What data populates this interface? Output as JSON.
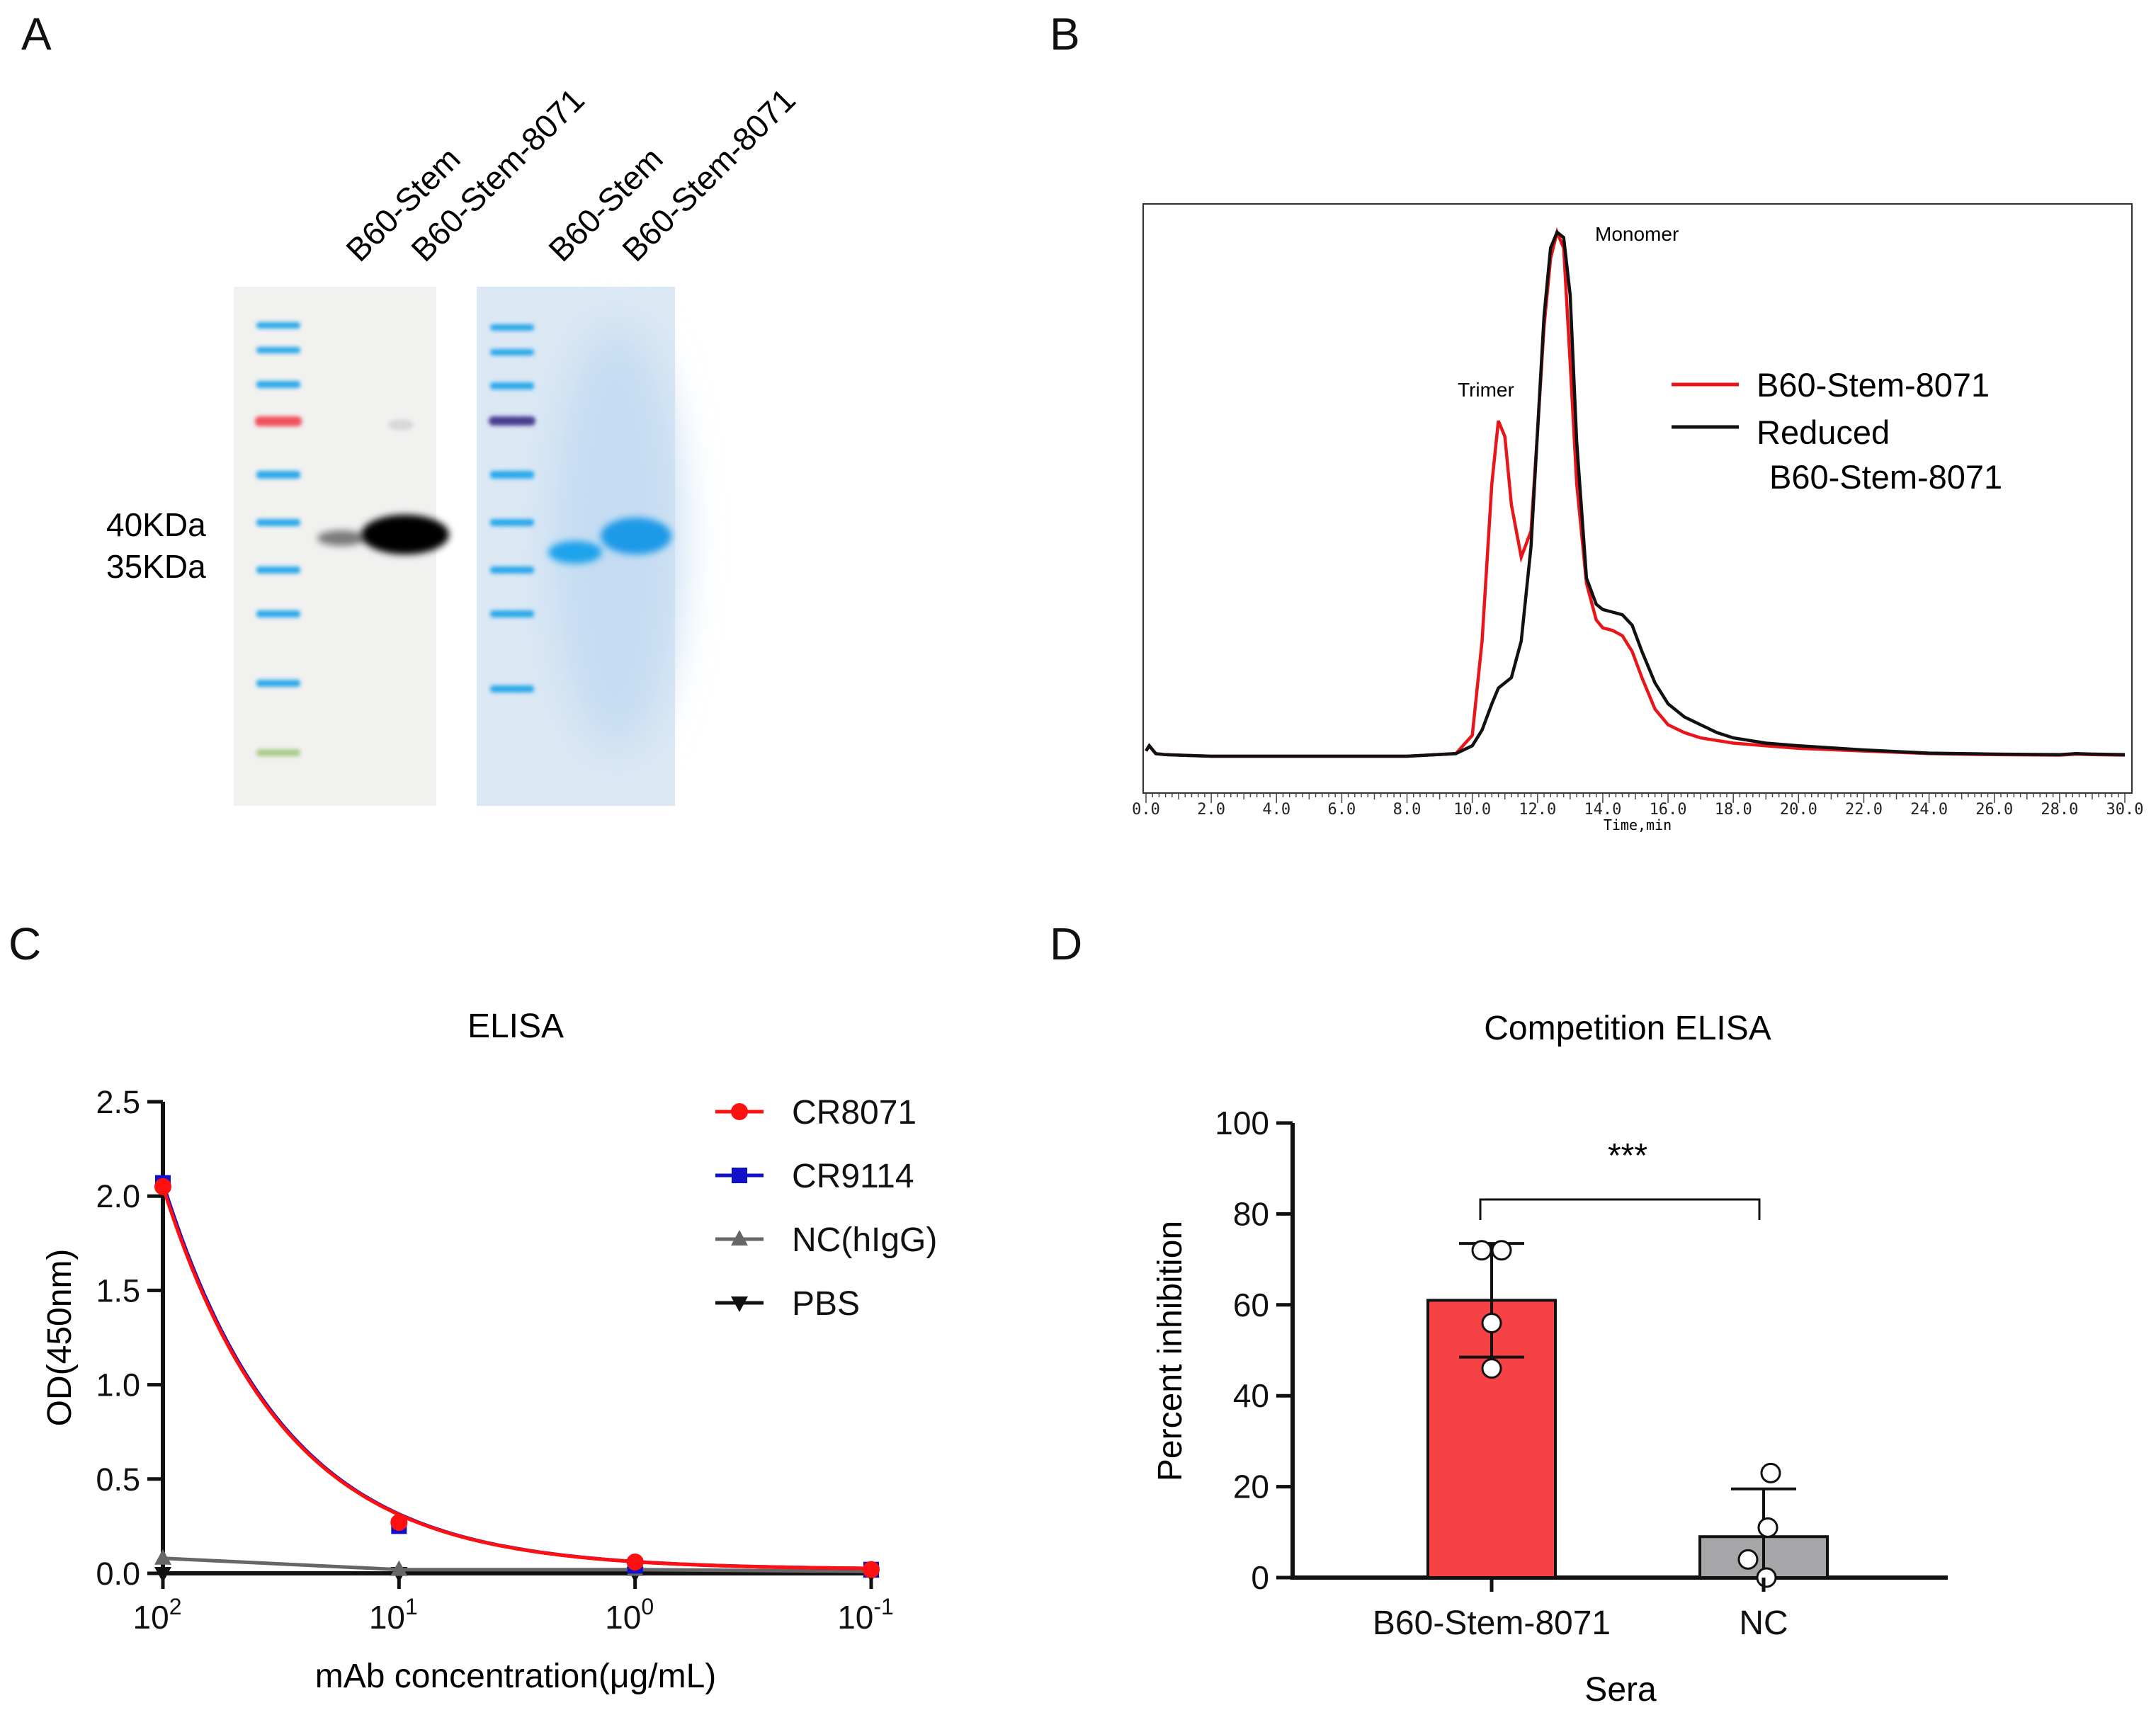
{
  "panels": {
    "a": "A",
    "b": "B",
    "c": "C",
    "d": "D"
  },
  "chart_data": [
    {
      "panel": "A",
      "type": "other",
      "description_kind": "gel",
      "lane_labels": [
        "B60-Stem",
        "B60-Stem-8071",
        "B60-Stem",
        "B60-Stem-8071"
      ],
      "marker_labels": [
        "40KDa",
        "35KDa"
      ],
      "colors": {
        "western_band": "#000000",
        "coomassie_band": "#1fa3ec",
        "ladder_blue": "#29a8ea",
        "ladder_red": "#f0505a",
        "ladder_purple": "#4a3d8f",
        "ladder_green": "#a9cc8a"
      }
    },
    {
      "panel": "B",
      "type": "line",
      "xlabel": "Time,min",
      "xlim": [
        0,
        30
      ],
      "xticks": [
        "0.0",
        "2.0",
        "4.0",
        "6.0",
        "8.0",
        "10.0",
        "12.0",
        "14.0",
        "16.0",
        "18.0",
        "20.0",
        "22.0",
        "24.0",
        "26.0",
        "28.0",
        "30.0"
      ],
      "annotations": {
        "trimer": "Trimer",
        "monomer": "Monomer"
      },
      "ylim": [
        0,
        1
      ],
      "legend": {
        "entries": [
          "B60-Stem-8071",
          "Reduced",
          "B60-Stem-8071"
        ]
      },
      "series": [
        {
          "name": "B60-Stem-8071",
          "color": "#e8151b",
          "x": [
            0,
            0.1,
            0.3,
            0.6,
            2,
            4,
            6,
            8,
            9.5,
            10.0,
            10.3,
            10.6,
            10.8,
            11.0,
            11.2,
            11.5,
            11.8,
            12.0,
            12.2,
            12.4,
            12.6,
            12.8,
            13.0,
            13.2,
            13.5,
            13.8,
            14.0,
            14.3,
            14.6,
            14.9,
            15.2,
            15.6,
            16.0,
            16.5,
            17.0,
            17.5,
            18.0,
            19,
            20,
            22,
            24,
            26,
            28,
            28.5,
            29,
            30
          ],
          "y": [
            0.01,
            0.02,
            0.005,
            0.003,
            0.0,
            0.0,
            0.0,
            0.0,
            0.005,
            0.04,
            0.22,
            0.52,
            0.64,
            0.61,
            0.48,
            0.38,
            0.43,
            0.62,
            0.82,
            0.95,
            1.0,
            0.97,
            0.75,
            0.52,
            0.33,
            0.26,
            0.245,
            0.24,
            0.23,
            0.2,
            0.15,
            0.09,
            0.06,
            0.045,
            0.035,
            0.03,
            0.025,
            0.02,
            0.015,
            0.01,
            0.005,
            0.003,
            0.002,
            0.004,
            0.003,
            0.002
          ]
        },
        {
          "name": "Reduced B60-Stem-8071",
          "color": "#111111",
          "x": [
            0,
            0.1,
            0.3,
            0.6,
            2,
            4,
            6,
            8,
            9.5,
            10.0,
            10.3,
            10.6,
            10.8,
            11.0,
            11.2,
            11.5,
            11.8,
            12.0,
            12.2,
            12.4,
            12.6,
            12.8,
            13.0,
            13.2,
            13.5,
            13.8,
            14.0,
            14.3,
            14.6,
            14.9,
            15.2,
            15.6,
            16.0,
            16.5,
            17.0,
            17.5,
            18.0,
            19,
            20,
            22,
            24,
            26,
            28,
            28.5,
            29,
            30
          ],
          "y": [
            0.01,
            0.02,
            0.005,
            0.003,
            0.0,
            0.0,
            0.0,
            0.0,
            0.005,
            0.02,
            0.05,
            0.1,
            0.13,
            0.14,
            0.15,
            0.22,
            0.4,
            0.62,
            0.84,
            0.97,
            1.0,
            0.99,
            0.88,
            0.6,
            0.34,
            0.29,
            0.28,
            0.275,
            0.27,
            0.25,
            0.2,
            0.14,
            0.1,
            0.075,
            0.06,
            0.045,
            0.035,
            0.025,
            0.02,
            0.012,
            0.006,
            0.004,
            0.003,
            0.005,
            0.004,
            0.003
          ]
        }
      ]
    },
    {
      "panel": "C",
      "type": "line",
      "title": "ELISA",
      "xlabel": "mAb concentration(μg/mL)",
      "ylabel": "OD(450nm)",
      "x_scale": "log, reversed",
      "x_ticks": [
        {
          "base": "10",
          "exp": "2",
          "value": 100
        },
        {
          "base": "10",
          "exp": "1",
          "value": 10
        },
        {
          "base": "10",
          "exp": "0",
          "value": 1
        },
        {
          "base": "10",
          "exp": "-1",
          "value": 0.1
        }
      ],
      "ylim": [
        0,
        2.5
      ],
      "yticks": [
        "0.0",
        "0.5",
        "1.0",
        "1.5",
        "2.0",
        "2.5"
      ],
      "x": [
        100,
        10,
        1,
        0.1
      ],
      "series": [
        {
          "name": "CR8071",
          "color": "#ff1010",
          "marker": "circle",
          "values": [
            2.05,
            0.27,
            0.06,
            0.02
          ]
        },
        {
          "name": "CR9114",
          "color": "#1010c8",
          "marker": "square",
          "values": [
            2.07,
            0.25,
            0.04,
            0.02
          ]
        },
        {
          "name": "NC(hIgG)",
          "color": "#666666",
          "marker": "triangle-up",
          "values": [
            0.08,
            0.02,
            0.02,
            0.01
          ]
        },
        {
          "name": "PBS",
          "color": "#111111",
          "marker": "triangle-down",
          "values": [
            0.0,
            0.0,
            0.0,
            0.0
          ]
        }
      ]
    },
    {
      "panel": "D",
      "type": "bar",
      "title": "Competition ELISA",
      "xlabel": "Sera",
      "ylabel": "Percent inhibition",
      "ylim": [
        0,
        100
      ],
      "yticks": [
        "0",
        "20",
        "40",
        "60",
        "80",
        "100"
      ],
      "categories": [
        "B60-Stem-8071",
        "NC"
      ],
      "values": [
        61,
        9
      ],
      "errors": [
        12.5,
        10.5
      ],
      "bar_colors": [
        "#f64145",
        "#a6a6a8"
      ],
      "points": [
        [
          72,
          72,
          56,
          46
        ],
        [
          23,
          11,
          4,
          0
        ]
      ],
      "significance": "***"
    }
  ]
}
